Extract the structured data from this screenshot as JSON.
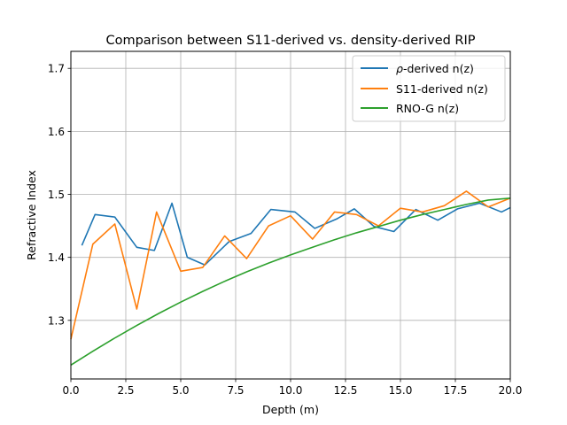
{
  "chart_data": {
    "type": "line",
    "title": "Comparison between S11-derived vs. density-derived RIP",
    "xlabel": "Depth (m)",
    "ylabel": "Refractive Index",
    "xlim": [
      0,
      20
    ],
    "ylim": [
      1.207,
      1.727
    ],
    "xticks": [
      0,
      2.5,
      5,
      7.5,
      10,
      12.5,
      15,
      17.5,
      20
    ],
    "xtick_labels": [
      "0.0",
      "2.5",
      "5.0",
      "7.5",
      "10.0",
      "12.5",
      "15.0",
      "17.5",
      "20.0"
    ],
    "yticks": [
      1.3,
      1.4,
      1.5,
      1.6,
      1.7
    ],
    "ytick_labels": [
      "1.3",
      "1.4",
      "1.5",
      "1.6",
      "1.7"
    ],
    "grid": true,
    "legend_position": "top-right",
    "series": [
      {
        "name": "ρ-derived n(z)",
        "legend_prefix": "ρ",
        "legend_suffix": "-derived n(z)",
        "color": "#1f77b4",
        "x": [
          0.5,
          1.1,
          2.0,
          3.0,
          3.8,
          4.6,
          5.3,
          6.1,
          7.2,
          8.2,
          9.1,
          10.2,
          11.1,
          12.1,
          12.9,
          13.8,
          14.7,
          15.7,
          16.7,
          17.6,
          18.6,
          19.6,
          20.0
        ],
        "y": [
          1.419,
          1.468,
          1.464,
          1.416,
          1.411,
          1.486,
          1.4,
          1.388,
          1.425,
          1.438,
          1.476,
          1.472,
          1.446,
          1.461,
          1.477,
          1.449,
          1.441,
          1.476,
          1.459,
          1.477,
          1.486,
          1.472,
          1.479
        ]
      },
      {
        "name": "S11-derived n(z)",
        "color": "#ff7f0e",
        "x": [
          0,
          1.0,
          2.0,
          3.0,
          3.9,
          5.0,
          6.0,
          7.0,
          8.0,
          9.0,
          10.0,
          11.0,
          12.0,
          13.0,
          14.0,
          15.0,
          16.0,
          17.0,
          18.0,
          19.0,
          20.0
        ],
        "y": [
          1.27,
          1.421,
          1.453,
          1.318,
          1.472,
          1.378,
          1.384,
          1.434,
          1.398,
          1.45,
          1.466,
          1.429,
          1.472,
          1.468,
          1.45,
          1.478,
          1.472,
          1.482,
          1.505,
          1.48,
          1.494
        ]
      },
      {
        "name": "RNO-G n(z)",
        "color": "#2ca02c",
        "x": [
          0,
          1,
          2,
          3,
          4,
          5,
          6,
          7,
          8,
          9,
          10,
          11,
          12,
          13,
          14,
          15,
          16,
          17,
          18,
          19,
          20
        ],
        "y": [
          1.229,
          1.251,
          1.272,
          1.292,
          1.311,
          1.329,
          1.346,
          1.362,
          1.377,
          1.391,
          1.404,
          1.416,
          1.428,
          1.439,
          1.449,
          1.459,
          1.468,
          1.476,
          1.484,
          1.491,
          1.494
        ]
      }
    ]
  }
}
